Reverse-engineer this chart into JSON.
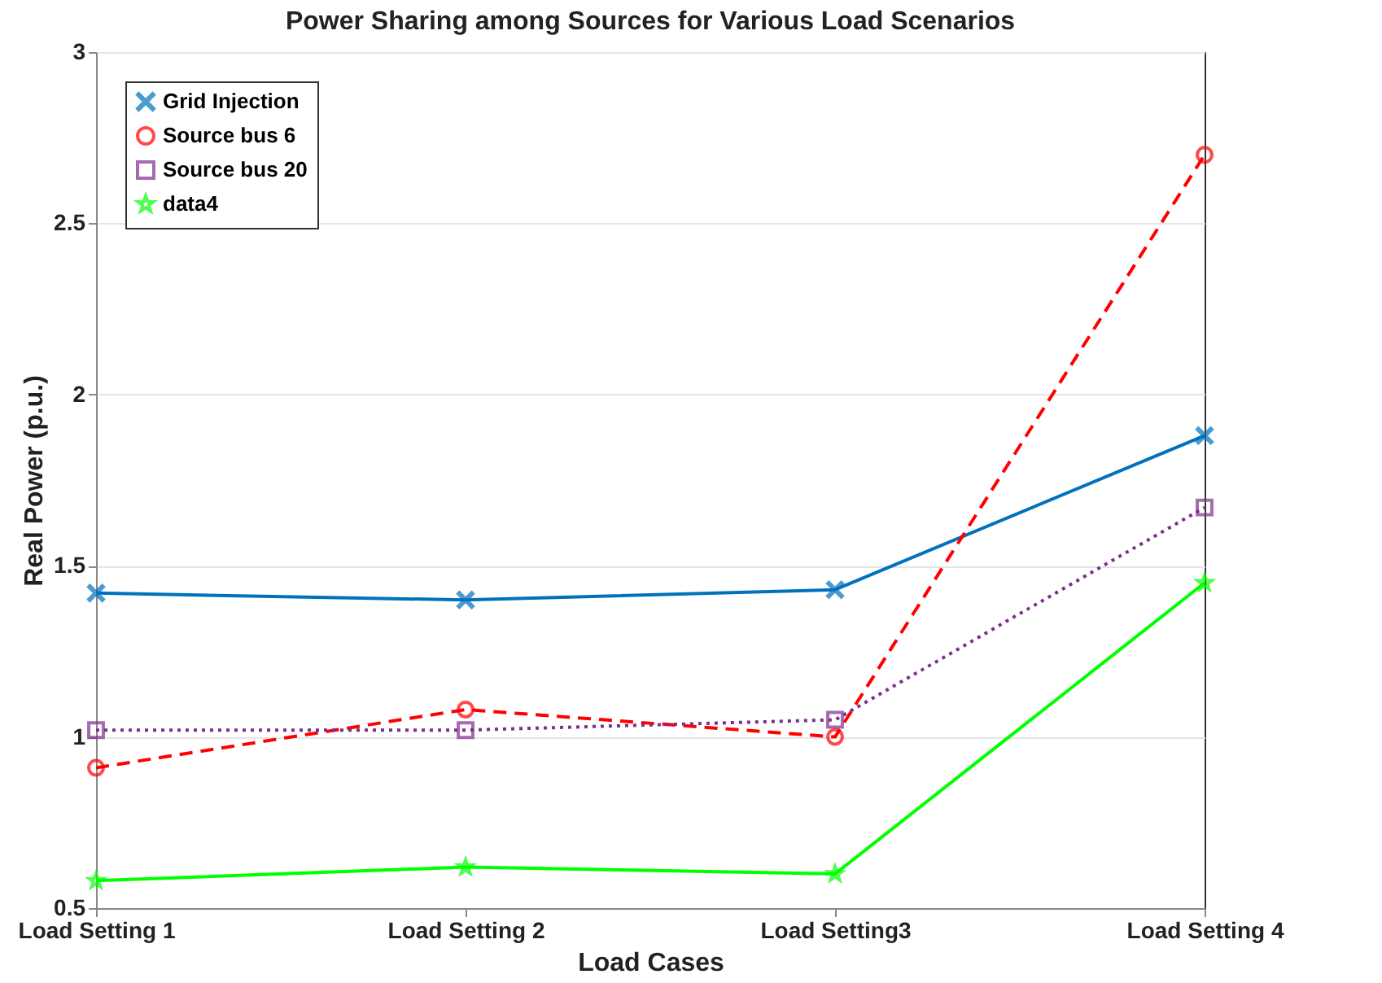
{
  "chart_data": {
    "type": "line",
    "title": "Power Sharing among Sources for Various Load Scenarios",
    "xlabel": "Load Cases",
    "ylabel": "Real Power (p.u.)",
    "categories": [
      "Load Setting 1",
      "Load Setting 2",
      "Load Setting3",
      "Load Setting 4"
    ],
    "series": [
      {
        "name": "Grid Injection",
        "color": "#0072bd",
        "values": [
          1.42,
          1.4,
          1.43,
          1.88
        ],
        "marker": "cross",
        "line_style": "solid"
      },
      {
        "name": "Source bus 6",
        "color": "#ff0000",
        "values": [
          0.91,
          1.08,
          1.0,
          2.7
        ],
        "marker": "circle",
        "line_style": "dashed"
      },
      {
        "name": "Source bus 20",
        "color": "#7e2f8e",
        "values": [
          1.02,
          1.02,
          1.05,
          1.67
        ],
        "marker": "square",
        "line_style": "dotted"
      },
      {
        "name": "data4",
        "color": "#00ff00",
        "values": [
          0.58,
          0.62,
          0.6,
          1.45
        ],
        "marker": "star",
        "line_style": "solid"
      }
    ],
    "ylim": [
      0.5,
      3
    ],
    "yticks": [
      0.5,
      1,
      1.5,
      2,
      2.5,
      3
    ],
    "grid": "y",
    "legend": "top left"
  }
}
